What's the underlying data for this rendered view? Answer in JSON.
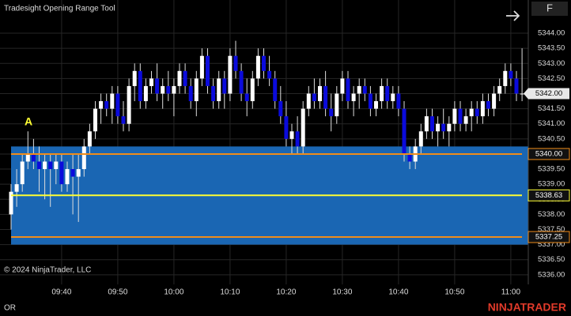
{
  "chart_data": {
    "type": "candlestick",
    "title": "Tradesight Opening Range Tool",
    "copyright": "© 2024 NinjaTrader, LLC",
    "annotation": "A",
    "indicator_label": "OR",
    "brand": "NINJATRADER",
    "button": "F",
    "up_color": "#ffffff",
    "down_color": "#0b0bdc",
    "ohlc": [
      [
        5338.0,
        5339.0,
        5337.5,
        5338.75
      ],
      [
        5338.75,
        5339.5,
        5338.25,
        5339.0
      ],
      [
        5339.0,
        5340.0,
        5338.75,
        5339.75
      ],
      [
        5339.75,
        5340.75,
        5339.5,
        5340.0
      ],
      [
        5340.0,
        5340.5,
        5339.5,
        5339.75
      ],
      [
        5339.75,
        5340.25,
        5338.75,
        5339.5
      ],
      [
        5339.5,
        5340.0,
        5338.5,
        5339.75
      ],
      [
        5339.75,
        5340.0,
        5338.25,
        5339.5
      ],
      [
        5339.5,
        5340.0,
        5339.0,
        5339.75
      ],
      [
        5339.75,
        5340.0,
        5338.75,
        5339.0
      ],
      [
        5339.0,
        5339.75,
        5338.75,
        5339.5
      ],
      [
        5339.5,
        5340.0,
        5338.0,
        5339.25
      ],
      [
        5339.25,
        5340.0,
        5337.75,
        5339.5
      ],
      [
        5339.5,
        5340.5,
        5339.25,
        5340.25
      ],
      [
        5340.25,
        5341.0,
        5340.0,
        5340.75
      ],
      [
        5340.75,
        5341.75,
        5340.5,
        5341.5
      ],
      [
        5341.5,
        5342.0,
        5341.0,
        5341.75
      ],
      [
        5341.75,
        5342.0,
        5341.25,
        5341.5
      ],
      [
        5341.5,
        5342.25,
        5341.0,
        5342.0
      ],
      [
        5342.0,
        5342.25,
        5341.0,
        5341.25
      ],
      [
        5341.25,
        5341.75,
        5340.75,
        5341.0
      ],
      [
        5341.0,
        5342.5,
        5340.75,
        5342.25
      ],
      [
        5342.25,
        5343.0,
        5341.75,
        5342.75
      ],
      [
        5342.75,
        5343.0,
        5341.5,
        5341.75
      ],
      [
        5341.75,
        5342.5,
        5341.5,
        5342.25
      ],
      [
        5342.25,
        5342.75,
        5342.0,
        5342.5
      ],
      [
        5342.5,
        5343.0,
        5341.75,
        5342.0
      ],
      [
        5342.0,
        5342.5,
        5341.5,
        5342.25
      ],
      [
        5342.25,
        5342.75,
        5341.75,
        5342.0
      ],
      [
        5342.0,
        5342.5,
        5341.25,
        5342.25
      ],
      [
        5342.25,
        5343.0,
        5342.0,
        5342.75
      ],
      [
        5342.75,
        5343.0,
        5342.0,
        5342.25
      ],
      [
        5342.25,
        5342.5,
        5341.5,
        5341.75
      ],
      [
        5341.75,
        5342.75,
        5341.25,
        5342.5
      ],
      [
        5342.5,
        5343.5,
        5342.25,
        5343.25
      ],
      [
        5343.25,
        5343.5,
        5342.0,
        5342.25
      ],
      [
        5342.25,
        5342.5,
        5341.5,
        5341.75
      ],
      [
        5341.75,
        5342.75,
        5341.5,
        5342.5
      ],
      [
        5342.5,
        5342.75,
        5341.5,
        5342.0
      ],
      [
        5342.0,
        5343.5,
        5341.75,
        5343.25
      ],
      [
        5343.25,
        5343.75,
        5342.5,
        5342.75
      ],
      [
        5342.75,
        5343.0,
        5341.75,
        5342.0
      ],
      [
        5342.0,
        5342.5,
        5341.25,
        5341.75
      ],
      [
        5341.75,
        5342.75,
        5341.5,
        5342.5
      ],
      [
        5342.5,
        5343.5,
        5342.25,
        5343.25
      ],
      [
        5343.25,
        5343.5,
        5342.5,
        5342.75
      ],
      [
        5342.75,
        5343.25,
        5342.25,
        5342.5
      ],
      [
        5342.5,
        5342.75,
        5341.5,
        5341.75
      ],
      [
        5341.75,
        5342.25,
        5341.0,
        5341.25
      ],
      [
        5341.25,
        5341.75,
        5340.25,
        5340.5
      ],
      [
        5340.5,
        5341.0,
        5340.0,
        5340.75
      ],
      [
        5340.75,
        5341.25,
        5340.0,
        5340.25
      ],
      [
        5340.25,
        5341.75,
        5340.0,
        5341.5
      ],
      [
        5341.5,
        5342.25,
        5341.25,
        5342.0
      ],
      [
        5342.0,
        5342.5,
        5341.5,
        5341.75
      ],
      [
        5341.75,
        5342.5,
        5341.5,
        5342.25
      ],
      [
        5342.25,
        5342.75,
        5341.25,
        5341.5
      ],
      [
        5341.5,
        5342.0,
        5340.75,
        5341.25
      ],
      [
        5341.25,
        5342.25,
        5341.0,
        5342.0
      ],
      [
        5342.0,
        5342.75,
        5341.75,
        5342.5
      ],
      [
        5342.5,
        5342.75,
        5341.5,
        5341.75
      ],
      [
        5341.75,
        5342.25,
        5341.25,
        5342.0
      ],
      [
        5342.0,
        5342.5,
        5341.5,
        5342.25
      ],
      [
        5342.25,
        5342.5,
        5341.75,
        5342.0
      ],
      [
        5342.0,
        5342.25,
        5341.25,
        5341.5
      ],
      [
        5341.5,
        5342.0,
        5341.25,
        5341.75
      ],
      [
        5341.75,
        5342.5,
        5341.5,
        5342.25
      ],
      [
        5342.25,
        5342.5,
        5341.5,
        5341.75
      ],
      [
        5341.75,
        5342.25,
        5341.5,
        5342.0
      ],
      [
        5342.0,
        5342.25,
        5341.25,
        5341.5
      ],
      [
        5341.5,
        5341.75,
        5339.75,
        5340.0
      ],
      [
        5340.0,
        5340.25,
        5339.5,
        5339.75
      ],
      [
        5339.75,
        5340.5,
        5339.5,
        5340.25
      ],
      [
        5340.25,
        5341.0,
        5340.0,
        5340.75
      ],
      [
        5340.75,
        5341.5,
        5340.5,
        5341.25
      ],
      [
        5341.25,
        5341.5,
        5340.5,
        5340.75
      ],
      [
        5340.75,
        5341.25,
        5340.25,
        5341.0
      ],
      [
        5341.0,
        5341.5,
        5340.5,
        5340.75
      ],
      [
        5340.75,
        5341.25,
        5340.25,
        5341.0
      ],
      [
        5341.0,
        5341.75,
        5340.75,
        5341.5
      ],
      [
        5341.5,
        5341.75,
        5340.75,
        5341.0
      ],
      [
        5341.0,
        5341.5,
        5340.75,
        5341.25
      ],
      [
        5341.25,
        5341.75,
        5340.75,
        5341.5
      ],
      [
        5341.5,
        5341.75,
        5341.0,
        5341.25
      ],
      [
        5341.25,
        5342.0,
        5341.0,
        5341.75
      ],
      [
        5341.75,
        5342.0,
        5341.25,
        5341.5
      ],
      [
        5341.5,
        5342.25,
        5341.25,
        5342.0
      ],
      [
        5342.0,
        5342.5,
        5341.75,
        5342.25
      ],
      [
        5342.25,
        5343.0,
        5342.0,
        5342.75
      ],
      [
        5342.75,
        5343.0,
        5342.25,
        5342.5
      ],
      [
        5342.5,
        5342.75,
        5341.75,
        5342.0
      ],
      [
        5342.0,
        5343.5,
        5341.75,
        5342.0
      ]
    ],
    "ylim": [
      5335.42,
      5345.1
    ],
    "yticks": [
      {
        "value": 5336.0,
        "label": "5336.00"
      },
      {
        "value": 5336.5,
        "label": "5336.50"
      },
      {
        "value": 5337.0,
        "label": "5337.00"
      },
      {
        "value": 5337.5,
        "label": "5337.50"
      },
      {
        "value": 5338.0,
        "label": "5338.00"
      },
      {
        "value": 5338.5,
        "label": "5338.50"
      },
      {
        "value": 5339.0,
        "label": "5339.00"
      },
      {
        "value": 5339.5,
        "label": "5339.50"
      },
      {
        "value": 5340.0,
        "label": "5340.00"
      },
      {
        "value": 5340.5,
        "label": "5340.50"
      },
      {
        "value": 5341.0,
        "label": "5341.00"
      },
      {
        "value": 5341.5,
        "label": "5341.50"
      },
      {
        "value": 5342.0,
        "label": "5342.00"
      },
      {
        "value": 5342.5,
        "label": "5342.50"
      },
      {
        "value": 5343.0,
        "label": "5343.00"
      },
      {
        "value": 5343.5,
        "label": "5343.50"
      },
      {
        "value": 5344.0,
        "label": "5344.00"
      }
    ],
    "xticks": [
      {
        "value": 9,
        "label": "09:40"
      },
      {
        "value": 19,
        "label": "09:50"
      },
      {
        "value": 29,
        "label": "10:00"
      },
      {
        "value": 39,
        "label": "10:10"
      },
      {
        "value": 49,
        "label": "10:20"
      },
      {
        "value": 59,
        "label": "10:30"
      },
      {
        "value": 69,
        "label": "10:40"
      },
      {
        "value": 79,
        "label": "10:50"
      },
      {
        "value": 89,
        "label": "11:00"
      }
    ],
    "range_box": {
      "low": 5337.0,
      "high": 5340.25,
      "color": "#1a66b3"
    },
    "price_lines": [
      {
        "value": 5340.0,
        "label": "5340.00",
        "color": "#f08c1a"
      },
      {
        "value": 5338.63,
        "label": "5338.63",
        "color": "#ffff33"
      },
      {
        "value": 5337.25,
        "label": "5337.25",
        "color": "#f08c1a"
      }
    ],
    "last_price": {
      "value": 5342.0,
      "label": "5342.00"
    },
    "grid": true
  }
}
